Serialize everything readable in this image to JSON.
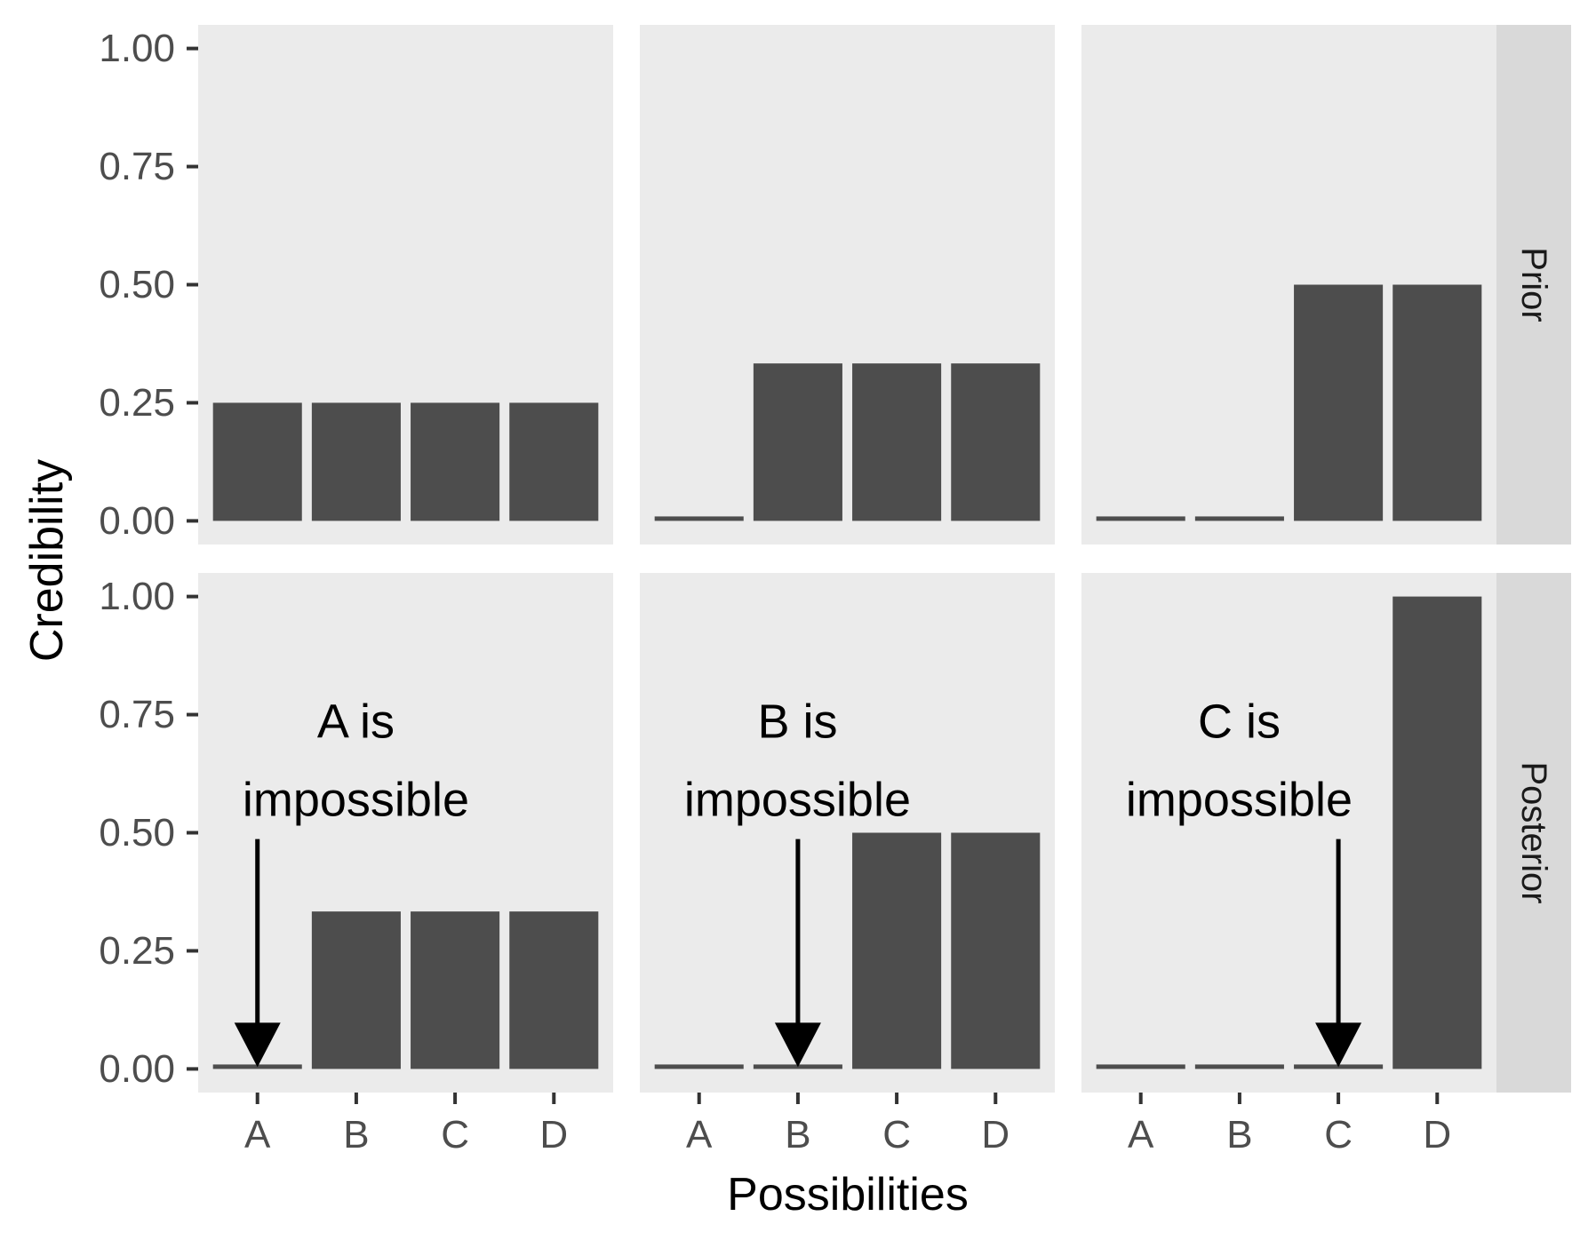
{
  "chart_data": {
    "type": "bar",
    "facet_layout": "grid",
    "xlabel": "Possibilities",
    "ylabel": "Credibility",
    "ylim": [
      0,
      1
    ],
    "y_ticks": [
      "0.00",
      "0.25",
      "0.50",
      "0.75",
      "1.00"
    ],
    "y_tick_values": [
      0,
      0.25,
      0.5,
      0.75,
      1
    ],
    "categories": [
      "A",
      "B",
      "C",
      "D"
    ],
    "row_labels": [
      "Prior",
      "Posterior"
    ],
    "bar_color": "#4d4d4d",
    "panel_background": "#ebebeb",
    "strip_background": "#d9d9d9",
    "grid": false,
    "panels": [
      {
        "row": 0,
        "col": 0,
        "values": [
          0.25,
          0.25,
          0.25,
          0.25
        ]
      },
      {
        "row": 0,
        "col": 1,
        "values": [
          0,
          0.3333,
          0.3333,
          0.3333
        ]
      },
      {
        "row": 0,
        "col": 2,
        "values": [
          0,
          0,
          0.5,
          0.5
        ]
      },
      {
        "row": 1,
        "col": 0,
        "values": [
          0,
          0.3333,
          0.3333,
          0.3333
        ],
        "annotation": [
          "A is",
          "impossible"
        ],
        "arrow_category": "A"
      },
      {
        "row": 1,
        "col": 1,
        "values": [
          0,
          0,
          0.5,
          0.5
        ],
        "annotation": [
          "B is",
          "impossible"
        ],
        "arrow_category": "B"
      },
      {
        "row": 1,
        "col": 2,
        "values": [
          0,
          0,
          0,
          1
        ],
        "annotation": [
          "C is",
          "impossible"
        ],
        "arrow_category": "C"
      }
    ]
  }
}
